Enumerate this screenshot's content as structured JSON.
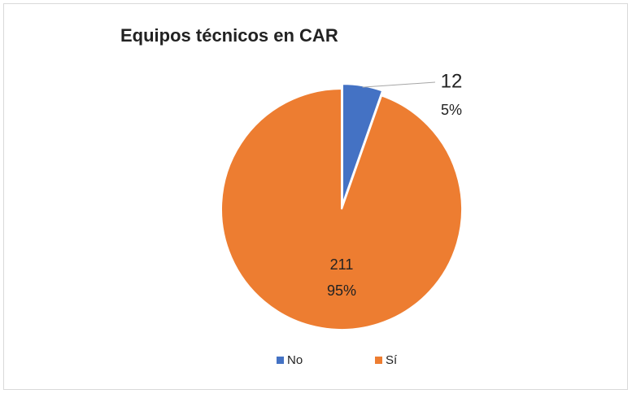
{
  "chart_data": {
    "type": "pie",
    "title": "Equipos técnicos en CAR",
    "categories": [
      "No",
      "Sí"
    ],
    "values": [
      12,
      211
    ],
    "percent_labels": [
      "5%",
      "95%"
    ],
    "colors": [
      "#4472c4",
      "#ed7d31"
    ],
    "legend": "bottom"
  }
}
